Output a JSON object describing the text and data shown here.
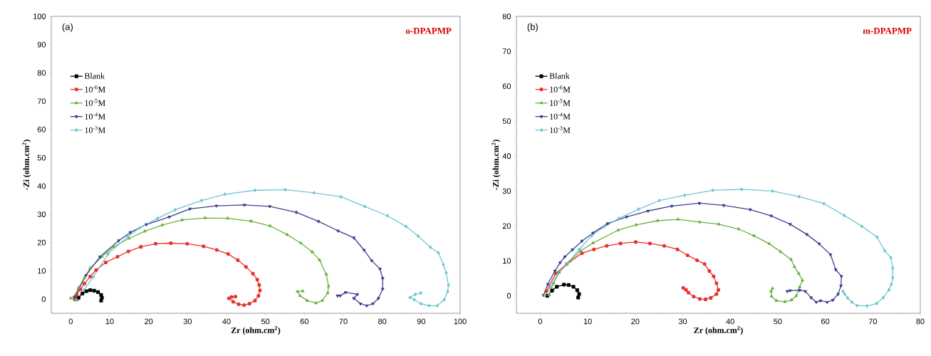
{
  "chart_data": [
    {
      "type": "line",
      "xlabel": "Zr (ohm.cm$^{2}$)",
      "ylabel": "-Zi (ohm.cm$^{2}$)",
      "annotations": [
        "(a)",
        "o-DPAPMP"
      ],
      "legend": "top left",
      "xlim": [
        -5,
        100
      ],
      "ylim": [
        -5,
        100
      ],
      "xticks": [
        0,
        10,
        20,
        30,
        40,
        50,
        60,
        70,
        80,
        90,
        100
      ],
      "yticks": [
        0,
        10,
        20,
        30,
        40,
        50,
        60,
        70,
        80,
        90,
        100
      ],
      "series": [
        {
          "name": "Blank",
          "color": "#000000",
          "marker": "square",
          "x": [
            1.5,
            2,
            3,
            4,
            5,
            6,
            7,
            7.8,
            8,
            7.8
          ],
          "values": [
            0,
            0.5,
            2,
            2.8,
            3.2,
            3,
            2.5,
            1.5,
            0.5,
            -0.5
          ]
        },
        {
          "name": "10$^{-6}$M",
          "color": "#e8312a",
          "marker": "circle",
          "x": [
            1,
            1.5,
            2.5,
            3.5,
            5,
            6.5,
            9,
            12,
            14.8,
            18,
            21.8,
            25.7,
            29.9,
            34.1,
            37.5,
            40.4,
            42.9,
            45,
            46.8,
            47.9,
            48.4,
            48.6,
            48.2,
            47.3,
            45.9,
            44.5,
            43.1,
            41.7,
            40.6,
            41.3,
            42.3
          ],
          "values": [
            0,
            1.5,
            3.5,
            5.5,
            8,
            10.3,
            13,
            15,
            16.9,
            18.5,
            19.6,
            19.8,
            19.6,
            18.7,
            17.4,
            16,
            13.8,
            11.4,
            9,
            6.9,
            5,
            3.1,
            1.2,
            -0.5,
            -1.6,
            -2.1,
            -1.8,
            -0.9,
            0.3,
            0.8,
            0.9
          ]
        },
        {
          "name": "10$^{-5}$M",
          "color": "#6ab23e",
          "marker": "triangle",
          "x": [
            0,
            1,
            2,
            3.5,
            5,
            8,
            11,
            15,
            19,
            23.5,
            28.6,
            34.5,
            40.3,
            46.3,
            51.2,
            55.6,
            59.1,
            62,
            63.9,
            65.6,
            66.2,
            66,
            64.6,
            63,
            60.7,
            58.9,
            58.2,
            59.6
          ],
          "values": [
            0.3,
            1,
            4,
            7.5,
            11,
            15,
            18.5,
            21.5,
            24,
            26.2,
            28,
            28.7,
            28.6,
            27.6,
            25.9,
            22.8,
            19.8,
            16.7,
            13.8,
            8.8,
            4.6,
            2.2,
            -0.5,
            -1.4,
            -0.5,
            1.2,
            2.7,
            2.8
          ]
        },
        {
          "name": "10$^{-4}$M",
          "color": "#3f3f96",
          "marker": "triangle-down",
          "x": [
            1,
            3.9,
            7.5,
            12.3,
            15.3,
            19.4,
            25.3,
            30.6,
            37.4,
            44.6,
            51.1,
            57.9,
            63.6,
            68.6,
            72.7,
            75.3,
            77.3,
            79.4,
            80.1,
            80.1,
            79,
            77.6,
            76,
            74.4,
            72.7,
            73.6,
            70.6,
            69.2,
            68.5
          ],
          "values": [
            0.8,
            8.4,
            15,
            20.7,
            23.6,
            26.4,
            29.1,
            31.9,
            33,
            33.3,
            32.8,
            30.7,
            27.5,
            24.2,
            21.7,
            17.4,
            13.6,
            10.7,
            7.4,
            3.6,
            0.3,
            -1.6,
            -2.3,
            -1.6,
            0.3,
            1.7,
            2.4,
            1.2,
            1.2
          ]
        },
        {
          "name": "10$^{-3}$M",
          "color": "#72c6d0",
          "marker": "diamond",
          "x": [
            1.5,
            3.3,
            5.8,
            9.6,
            14.6,
            17.7,
            22.3,
            26.8,
            33.6,
            39.6,
            47.3,
            55.1,
            62.5,
            69.4,
            75.5,
            81.3,
            86.1,
            89.2,
            92.4,
            94.4,
            95.7,
            96.4,
            97,
            96.8,
            95.9,
            94.1,
            92,
            89.9,
            88.2,
            87.1,
            88.5,
            89.9
          ],
          "values": [
            -0.2,
            3.1,
            7.9,
            16,
            22.1,
            25.2,
            28.6,
            31.6,
            34.9,
            37.1,
            38.5,
            38.7,
            37.6,
            36.2,
            32.8,
            29.5,
            25.7,
            22.3,
            18.3,
            16.4,
            12.2,
            9.3,
            5,
            2.7,
            -0.2,
            -2.3,
            -2.3,
            -1.6,
            -0.2,
            0.6,
            1.7,
            2.2
          ]
        }
      ]
    },
    {
      "type": "line",
      "xlabel": "Zr (ohm.cm$^{2}$)",
      "ylabel": "-Zi (ohm.cm$^{2}$)",
      "annotations": [
        "(b)",
        "m-DPAPMP"
      ],
      "legend": "top left",
      "xlim": [
        -5,
        80
      ],
      "ylim": [
        -5,
        80
      ],
      "xticks": [
        0,
        10,
        20,
        30,
        40,
        50,
        60,
        70,
        80
      ],
      "yticks": [
        0,
        10,
        20,
        30,
        40,
        50,
        60,
        70,
        80
      ],
      "series": [
        {
          "name": "Blank",
          "color": "#000000",
          "marker": "square",
          "x": [
            1.5,
            2.5,
            3.5,
            5,
            6,
            7,
            7.8,
            8.2,
            8
          ],
          "values": [
            0,
            1.5,
            2.6,
            3.2,
            3.1,
            2.6,
            1.6,
            0.5,
            -0.5
          ]
        },
        {
          "name": "10$^{-6}$M",
          "color": "#e8312a",
          "marker": "circle",
          "x": [
            1.3,
            3.3,
            5.6,
            8.8,
            11.3,
            14,
            16.9,
            20.1,
            23.1,
            26.1,
            28.9,
            31,
            33,
            34.6,
            35.6,
            36.5,
            37.1,
            37.5,
            37.1,
            35.9,
            34.8,
            33.6,
            32.3,
            31.2,
            30.7,
            30.1
          ],
          "values": [
            1.3,
            6.4,
            9.1,
            12.2,
            13.3,
            14.3,
            15,
            15.4,
            15,
            14.3,
            13.3,
            11.6,
            10.2,
            9.1,
            7.1,
            5.6,
            3.6,
            1.7,
            0.5,
            -0.6,
            -1,
            -0.9,
            -0.2,
            0.9,
            1.7,
            2.3
          ]
        },
        {
          "name": "10$^{-5}$M",
          "color": "#6ab23e",
          "marker": "triangle",
          "x": [
            1.9,
            2.8,
            4,
            6.2,
            8.5,
            11.1,
            16.4,
            20.2,
            24.7,
            29,
            33.6,
            37.6,
            41.8,
            45,
            48.2,
            50.6,
            52.8,
            53.5,
            54.4,
            55.2,
            54.6,
            53.9,
            52.9,
            51.5,
            49.7,
            48.7,
            48.6,
            48.9
          ],
          "values": [
            0.2,
            3.6,
            6.7,
            9.8,
            12.9,
            15.1,
            18.8,
            20.3,
            21.5,
            21.9,
            21.1,
            20.5,
            19.1,
            17.2,
            14.9,
            12.6,
            10.4,
            8.3,
            6.4,
            4.4,
            2.5,
            0,
            -1.2,
            -1.7,
            -1.4,
            -0.2,
            1.3,
            2.1
          ]
        },
        {
          "name": "10$^{-4}$M",
          "color": "#3f3f96",
          "marker": "triangle-down",
          "x": [
            0.7,
            1.6,
            3.1,
            4.2,
            5.2,
            6.8,
            8.8,
            11.1,
            14.2,
            18.2,
            22.7,
            27.7,
            33.5,
            38.6,
            44.2,
            48.6,
            52.6,
            56.1,
            58.7,
            61.1,
            62.2,
            63.4,
            63.3,
            62.7,
            61.6,
            60.4,
            59,
            58.1,
            57,
            55.8,
            54.6,
            52.6,
            52
          ],
          "values": [
            0.2,
            3.3,
            7.1,
            9.5,
            11.2,
            13.2,
            15.7,
            18,
            20.7,
            22.6,
            24.3,
            25.7,
            26.5,
            25.9,
            24.7,
            22.9,
            20.5,
            17.6,
            14.9,
            11.8,
            7.5,
            5.6,
            2.9,
            0.5,
            -1.2,
            -1.8,
            -1.4,
            -1.8,
            -0.5,
            1.3,
            1.6,
            1.5,
            1.3
          ]
        },
        {
          "name": "10$^{-3}$M",
          "color": "#72c6d0",
          "marker": "diamond",
          "x": [
            1,
            2.2,
            3.6,
            5.6,
            8.2,
            10.8,
            13.4,
            16.6,
            20.7,
            25.1,
            30.4,
            36.3,
            42.4,
            48.9,
            54.5,
            59.7,
            64,
            67.7,
            70.9,
            72.5,
            73.8,
            74.2,
            74.2,
            73.9,
            73.4,
            72.2,
            70.8,
            68.8,
            66.7,
            65.6,
            64.7,
            64.1,
            63.7
          ],
          "values": [
            0.2,
            2.5,
            6,
            9.1,
            13.3,
            17.2,
            19.7,
            22.2,
            24.8,
            27.3,
            28.8,
            30.2,
            30.5,
            30,
            28.4,
            26.4,
            23,
            19.9,
            16.8,
            12.9,
            10.9,
            7.9,
            5.2,
            3.3,
            1.7,
            -0.5,
            -2.2,
            -2.9,
            -2.8,
            -1.8,
            -0.6,
            0.5,
            1.3
          ]
        }
      ]
    }
  ]
}
